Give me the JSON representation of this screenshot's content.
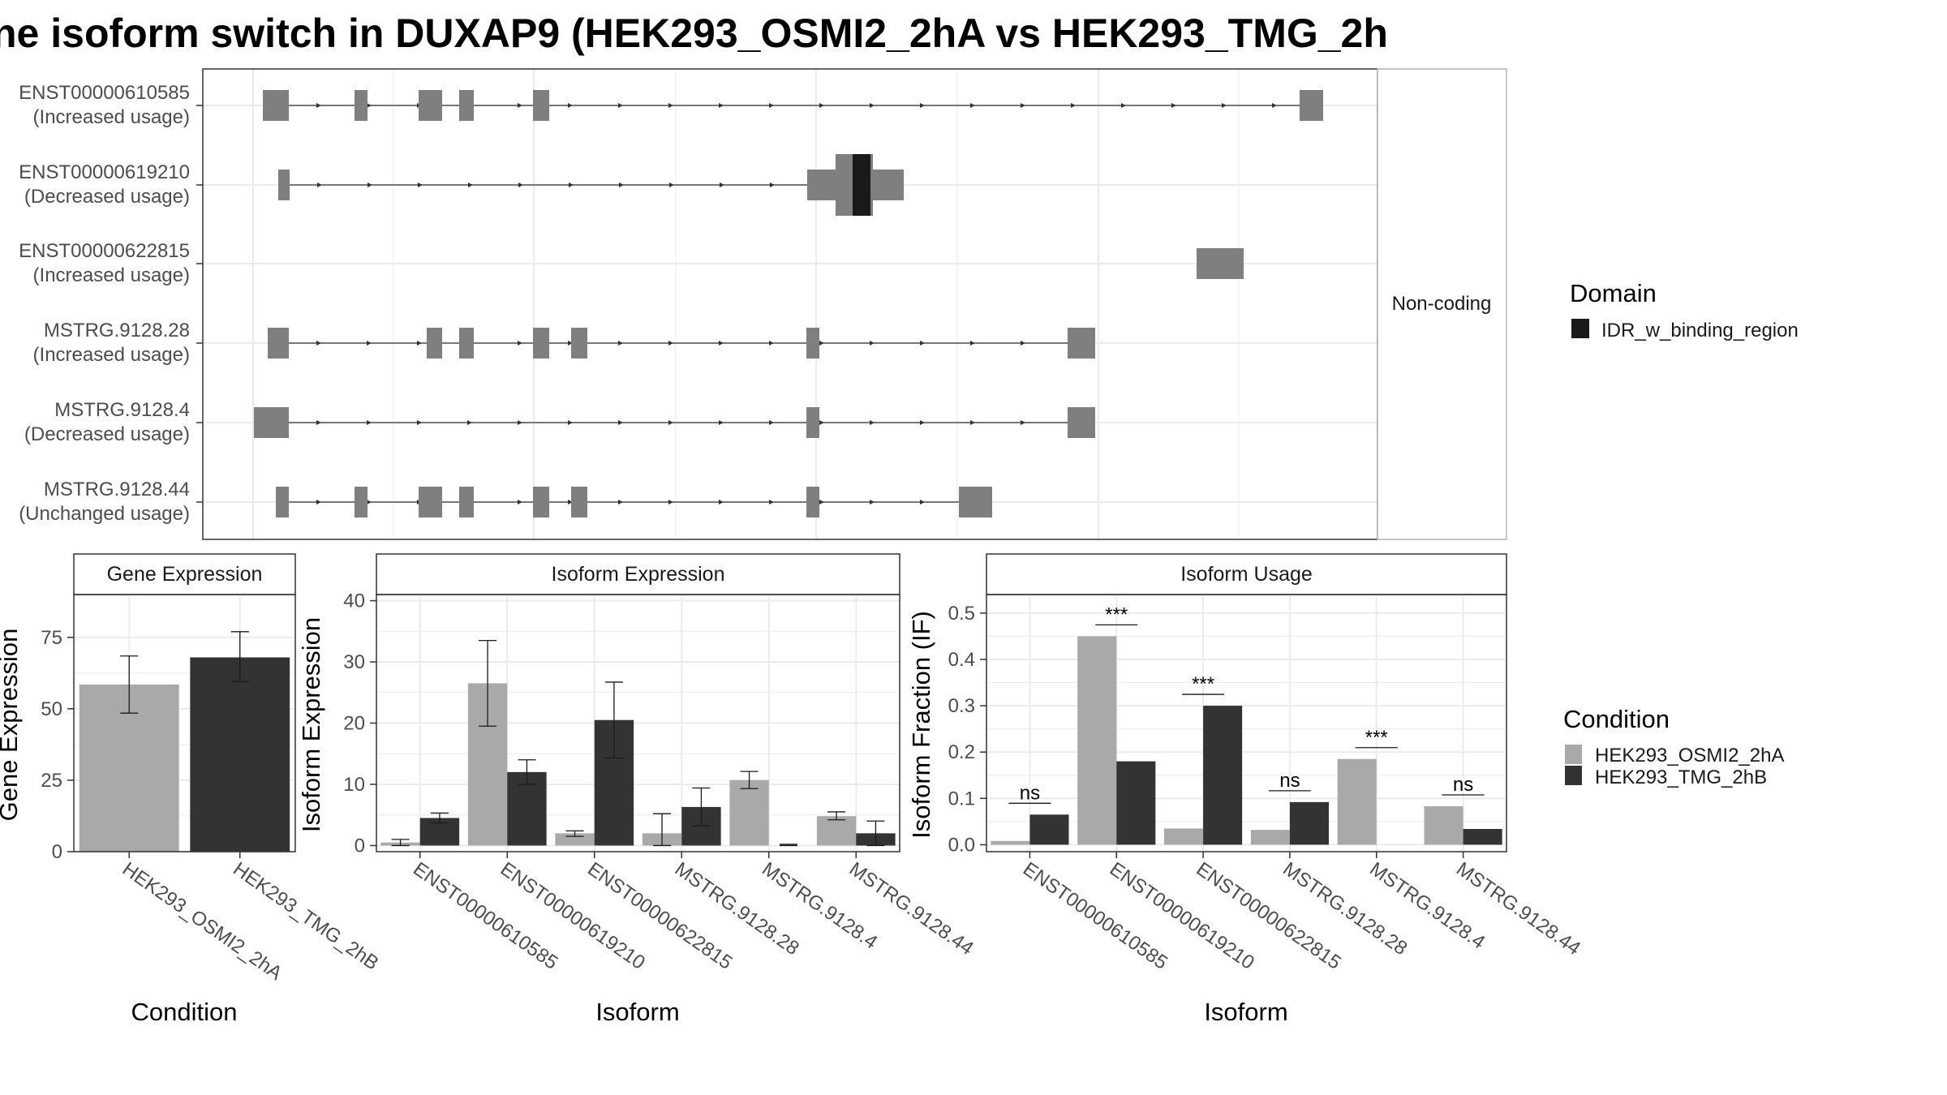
{
  "title": "ne isoform switch in DUXAP9 (HEK293_OSMI2_2hA vs HEK293_TMG_2h",
  "colors": {
    "condA": "#a9a9a9",
    "condB": "#333333",
    "exon": "#7f7f7f",
    "domain": "#1a1a1a",
    "grid": "#ebebeb",
    "panel_border": "#333333",
    "strip_bg": "#ffffff"
  },
  "structure": {
    "noncoding_strip_label": "Non-coding",
    "isoforms": [
      {
        "id": "ENST00000610585",
        "usage": "(Increased usage)"
      },
      {
        "id": "ENST00000619210",
        "usage": "(Decreased usage)"
      },
      {
        "id": "ENST00000622815",
        "usage": "(Increased usage)"
      },
      {
        "id": "MSTRG.9128.28",
        "usage": "(Increased usage)"
      },
      {
        "id": "MSTRG.9128.4",
        "usage": "(Decreased usage)"
      },
      {
        "id": "MSTRG.9128.44",
        "usage": "(Unchanged usage)"
      }
    ]
  },
  "legend_domain": {
    "title": "Domain",
    "items": [
      "IDR_w_binding_region"
    ]
  },
  "legend_condition": {
    "title": "Condition",
    "items": [
      "HEK293_OSMI2_2hA",
      "HEK293_TMG_2hB"
    ]
  },
  "chart_data": [
    {
      "type": "bar",
      "title": "Gene Expression",
      "xlabel": "Condition",
      "ylabel": "Gene Expression",
      "categories": [
        "HEK293_OSMI2_2hA",
        "HEK293_TMG_2hB"
      ],
      "values": [
        58.5,
        68
      ],
      "error_low": [
        48.5,
        59.5
      ],
      "error_high": [
        68.5,
        77
      ],
      "ylim": [
        0,
        90
      ],
      "yticks": [
        0,
        25,
        50,
        75
      ]
    },
    {
      "type": "bar",
      "title": "Isoform Expression",
      "xlabel": "Isoform",
      "ylabel": "Isoform Expression",
      "categories": [
        "ENST00000610585",
        "ENST00000619210",
        "ENST00000622815",
        "MSTRG.9128.28",
        "MSTRG.9128.4",
        "MSTRG.9128.44"
      ],
      "series": [
        {
          "name": "HEK293_OSMI2_2hA",
          "values": [
            0.5,
            26.5,
            2,
            2,
            10.7,
            4.8
          ],
          "error_low": [
            0,
            19.5,
            1.5,
            0,
            9.3,
            4.2
          ],
          "error_high": [
            1,
            33.5,
            2.4,
            5.2,
            12.1,
            5.5
          ]
        },
        {
          "name": "HEK293_TMG_2hB",
          "values": [
            4.5,
            12,
            20.5,
            6.3,
            0,
            2
          ],
          "error_low": [
            3.7,
            10,
            14.3,
            3.2,
            0,
            0
          ],
          "error_high": [
            5.3,
            14,
            26.7,
            9.4,
            0.2,
            4
          ]
        }
      ],
      "ylim": [
        -1,
        41
      ],
      "yticks": [
        0,
        10,
        20,
        30,
        40
      ]
    },
    {
      "type": "bar",
      "title": "Isoform Usage",
      "xlabel": "Isoform",
      "ylabel": "Isoform Fraction (IF)",
      "categories": [
        "ENST00000610585",
        "ENST00000619210",
        "ENST00000622815",
        "MSTRG.9128.28",
        "MSTRG.9128.4",
        "MSTRG.9128.44"
      ],
      "series": [
        {
          "name": "HEK293_OSMI2_2hA",
          "values": [
            0.008,
            0.45,
            0.035,
            0.032,
            0.185,
            0.083
          ]
        },
        {
          "name": "HEK293_TMG_2hB",
          "values": [
            0.065,
            0.18,
            0.3,
            0.092,
            0,
            0.034
          ]
        }
      ],
      "significance": [
        "ns",
        "***",
        "***",
        "ns",
        "***",
        "ns"
      ],
      "ylim": [
        -0.015,
        0.54
      ],
      "yticks": [
        0.0,
        0.1,
        0.2,
        0.3,
        0.4,
        0.5
      ],
      "ytick_labels": [
        "0.0",
        "0.1",
        "0.2",
        "0.3",
        "0.4",
        "0.5"
      ]
    }
  ]
}
